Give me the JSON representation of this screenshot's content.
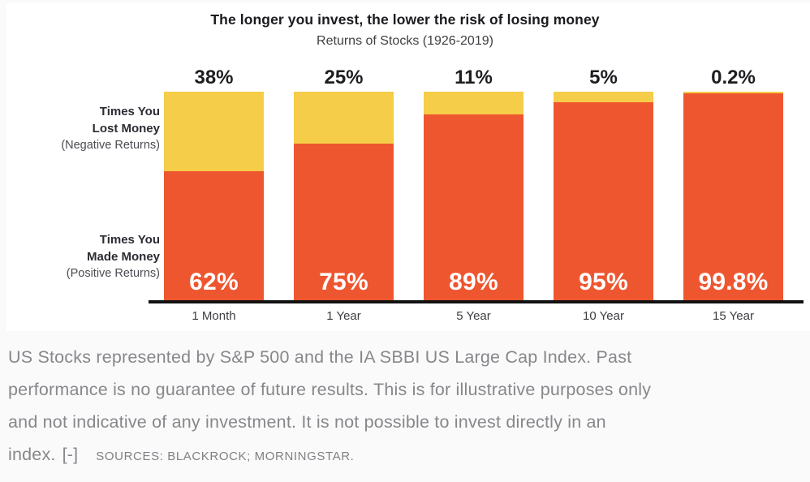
{
  "chart_data": {
    "type": "bar",
    "stacked": true,
    "orientation": "vertical",
    "title": "The longer you invest, the lower the risk of losing money",
    "subtitle": "Returns of Stocks (1926-2019)",
    "categories": [
      "1 Month",
      "1 Year",
      "5 Year",
      "10 Year",
      "15 Year"
    ],
    "series": [
      {
        "name": "Times You Lost Money (Negative Returns)",
        "color": "#F5CD48",
        "values": [
          38,
          25,
          11,
          5,
          0.2
        ],
        "labels": [
          "38%",
          "25%",
          "11%",
          "5%",
          "0.2%"
        ],
        "label_position": "above-bar",
        "label_color": "#1e1e22"
      },
      {
        "name": "Times You Made Money (Positive Returns)",
        "color": "#EE5630",
        "values": [
          62,
          75,
          89,
          95,
          99.8
        ],
        "labels": [
          "62%",
          "75%",
          "89%",
          "95%",
          "99.8%"
        ],
        "label_position": "inside-bottom",
        "label_color": "#ffffff"
      }
    ],
    "ylim": [
      0,
      100
    ],
    "grid": false,
    "legend_position": "left-axis-annotations",
    "axis_color": "#111111"
  },
  "axis_annotations": {
    "lost": {
      "line1": "Times You",
      "line2": "Lost Money",
      "line3": "(Negative Returns)"
    },
    "made": {
      "line1": "Times You",
      "line2": "Made Money",
      "line3": "(Positive Returns)"
    }
  },
  "caption": {
    "lines": [
      "US Stocks represented by S&P 500 and the IA SBBI US Large Cap Index. Past",
      "performance is no guarantee of future results. This is for illustrative purposes only",
      "and not indicative of any investment. It is not possible to invest directly in an",
      "index."
    ],
    "collapse_label": "[-]",
    "sources": "SOURCES: BLACKROCK; MORNINGSTAR."
  }
}
